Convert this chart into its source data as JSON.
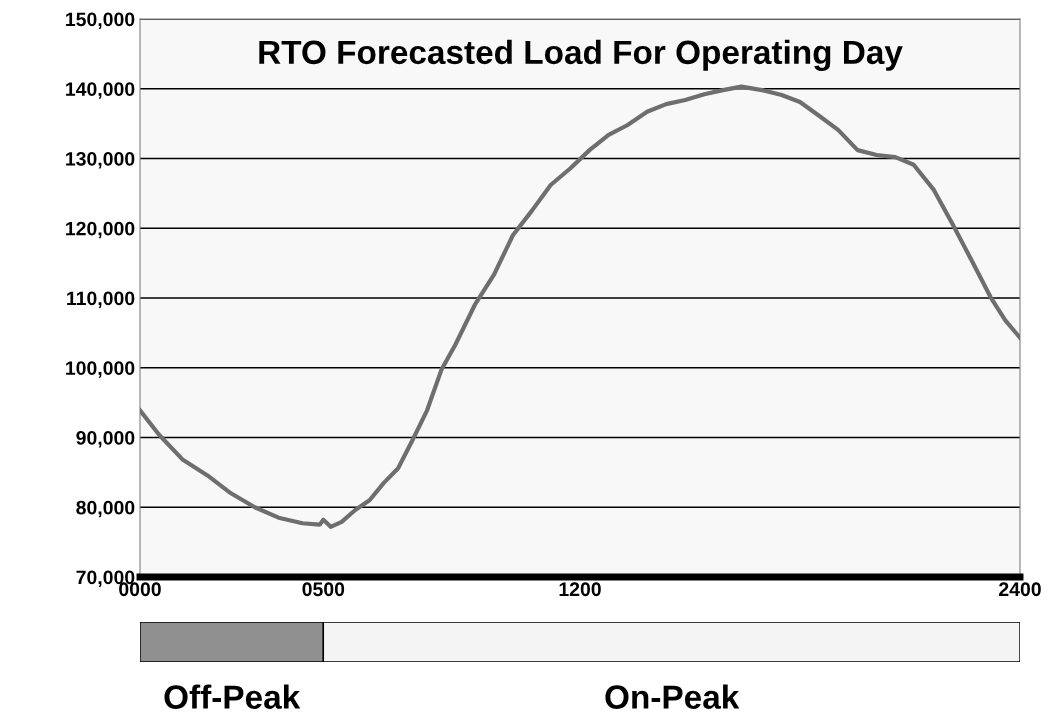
{
  "chart_data": [
    {
      "type": "line",
      "title": "RTO Forecasted Load For Operating Day",
      "x": [
        0,
        52,
        117,
        183,
        248,
        313,
        378,
        443,
        490,
        500,
        520,
        550,
        587,
        626,
        665,
        704,
        743,
        783,
        822,
        860,
        913,
        965,
        1017,
        1070,
        1120,
        1174,
        1226,
        1278,
        1330,
        1383,
        1435,
        1487,
        1539,
        1590,
        1640,
        1696,
        1750,
        1800,
        1850,
        1904,
        1957,
        2009,
        2060,
        2110,
        2165,
        2217,
        2270,
        2320,
        2360,
        2400
      ],
      "series": [
        {
          "color": "#6e6e6e",
          "values": [
            93900,
            90400,
            86800,
            84600,
            82000,
            80000,
            78500,
            77700,
            77500,
            78200,
            77200,
            77900,
            79600,
            81000,
            83500,
            85600,
            89600,
            93900,
            99700,
            103300,
            109000,
            113300,
            119000,
            122600,
            126200,
            128600,
            131200,
            133400,
            134800,
            136700,
            137800,
            138400,
            139200,
            139800,
            140300,
            139800,
            139100,
            138100,
            136200,
            134100,
            131200,
            130500,
            130200,
            129100,
            125500,
            120500,
            115200,
            110100,
            106800,
            104300
          ]
        }
      ],
      "xlim": [
        0,
        2400
      ],
      "xticks": [
        {
          "value": 0,
          "label": "0000"
        },
        {
          "value": 500,
          "label": "0500"
        },
        1200,
        2400
      ],
      "ylim": [
        70000,
        150000
      ],
      "yticks": [
        {
          "value": 70000,
          "label": "70,000"
        },
        {
          "value": 80000,
          "label": "80,000"
        },
        {
          "value": 90000,
          "label": "90,000"
        },
        {
          "value": 100000,
          "label": "100,000"
        },
        {
          "value": 110000,
          "label": "110,000"
        },
        {
          "value": 120000,
          "label": "120,000"
        },
        {
          "value": 130000,
          "label": "130,000"
        },
        {
          "value": 140000,
          "label": "140,000"
        },
        {
          "value": 150000,
          "label": "150,000"
        }
      ],
      "grid": "y"
    },
    {
      "type": "bar",
      "orientation": "horizontal",
      "stacked": true,
      "categories": [
        null
      ],
      "series": [
        {
          "name": "Off-Peak",
          "color": "#909090",
          "values": [
            500
          ]
        },
        {
          "name": "On-Peak",
          "color": "#f4f4f4",
          "values": [
            1900
          ]
        }
      ],
      "xlim": [
        0,
        2400
      ],
      "tick_labels": false
    }
  ]
}
